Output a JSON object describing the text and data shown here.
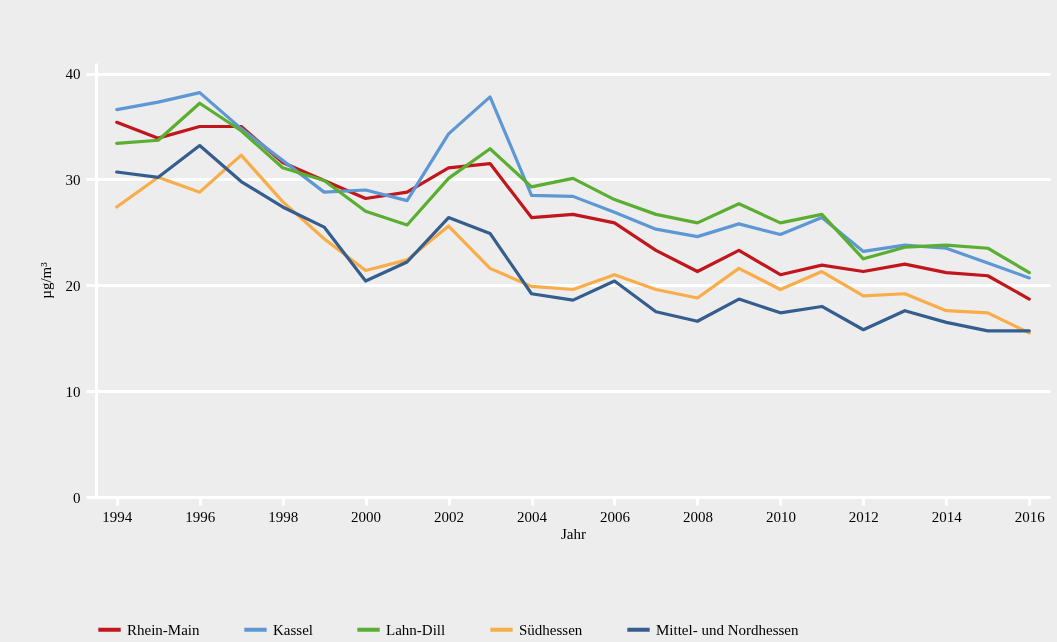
{
  "chart_data": {
    "type": "line",
    "xlabel": "Jahr",
    "ylabel": "µg/m³",
    "x": [
      1994,
      1995,
      1996,
      1997,
      1998,
      1999,
      2000,
      2001,
      2002,
      2003,
      2004,
      2005,
      2006,
      2007,
      2008,
      2009,
      2010,
      2011,
      2012,
      2013,
      2014,
      2015,
      2016
    ],
    "xlim": [
      1993.5,
      2016.5
    ],
    "xticks": [
      1994,
      1996,
      1998,
      2000,
      2002,
      2004,
      2006,
      2008,
      2010,
      2012,
      2014,
      2016
    ],
    "ylim": [
      0,
      41
    ],
    "yticks": [
      0,
      10,
      20,
      30,
      40
    ],
    "grid": "y",
    "legend": "bottom",
    "line_style": "solid",
    "series": [
      {
        "name": "Rhein-Main",
        "color": "#c0161c",
        "values": [
          35.4,
          33.9,
          35.0,
          35.0,
          31.6,
          29.9,
          28.2,
          28.8,
          31.1,
          31.5,
          26.4,
          26.7,
          25.9,
          23.3,
          21.3,
          23.3,
          21.0,
          21.9,
          21.3,
          22.0,
          21.2,
          20.9,
          18.7
        ]
      },
      {
        "name": "Kassel",
        "color": "#5e98d4",
        "values": [
          36.6,
          37.3,
          38.2,
          34.8,
          31.8,
          28.8,
          29.0,
          28.0,
          34.3,
          37.8,
          28.5,
          28.4,
          26.9,
          25.3,
          24.6,
          25.8,
          24.8,
          26.4,
          23.2,
          23.8,
          23.5,
          22.1,
          20.7
        ]
      },
      {
        "name": "Lahn-Dill",
        "color": "#5aae30",
        "values": [
          33.4,
          33.7,
          37.2,
          34.6,
          31.1,
          29.9,
          27.0,
          25.7,
          30.1,
          32.9,
          29.3,
          30.1,
          28.1,
          26.7,
          25.9,
          27.7,
          25.9,
          26.7,
          22.5,
          23.6,
          23.8,
          23.5,
          21.2
        ]
      },
      {
        "name": "Südhessen",
        "color": "#f9ad48",
        "values": [
          27.4,
          30.2,
          28.8,
          32.3,
          27.9,
          24.4,
          21.4,
          22.4,
          25.6,
          21.6,
          19.9,
          19.6,
          21.0,
          19.6,
          18.8,
          21.6,
          19.6,
          21.3,
          19.0,
          19.2,
          17.6,
          17.4,
          15.5
        ]
      },
      {
        "name": "Mittel- und Nordhessen",
        "color": "#355e8e",
        "values": [
          30.7,
          30.2,
          33.2,
          29.8,
          27.4,
          25.5,
          20.4,
          22.2,
          26.4,
          24.9,
          19.2,
          18.6,
          20.4,
          17.5,
          16.6,
          18.7,
          17.4,
          18.0,
          15.8,
          17.6,
          16.5,
          15.7,
          15.7
        ]
      }
    ]
  }
}
